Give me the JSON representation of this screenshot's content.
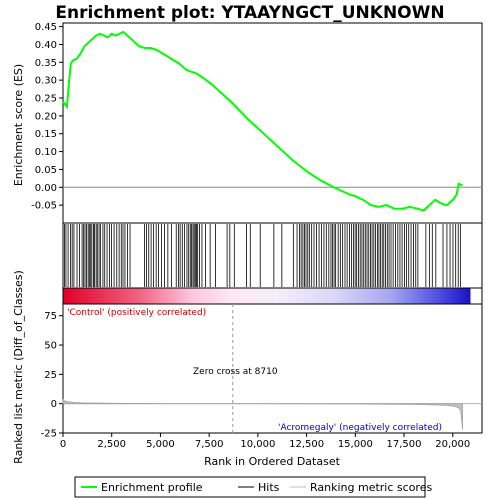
{
  "chart_data": {
    "type": "line",
    "title": "Enrichment plot: YTAAYNGCT_UNKNOWN",
    "top_panel": {
      "ylabel": "Enrichment score (ES)",
      "ylim": [
        -0.1,
        0.46
      ],
      "yticks": [
        -0.05,
        0.0,
        0.05,
        0.1,
        0.15,
        0.2,
        0.25,
        0.3,
        0.35,
        0.4,
        0.45
      ],
      "grid": false,
      "series": [
        {
          "name": "Enrichment profile",
          "color": "#00ff00",
          "x": [
            0,
            200,
            300,
            400,
            500,
            700,
            900,
            1100,
            1300,
            1500,
            1700,
            1900,
            2100,
            2300,
            2500,
            2700,
            2900,
            3100,
            3300,
            3600,
            3900,
            4200,
            4500,
            4800,
            5100,
            5400,
            5700,
            6000,
            6300,
            6500,
            6800,
            7100,
            7600,
            8100,
            8710,
            9500,
            10200,
            11000,
            11800,
            12500,
            13200,
            13900,
            14300,
            14700,
            15000,
            15400,
            15800,
            16200,
            16600,
            17000,
            17400,
            17800,
            18200,
            18500,
            18800,
            19100,
            19400,
            19700,
            20000,
            20200,
            20300,
            20500
          ],
          "y": [
            0.24,
            0.225,
            0.29,
            0.345,
            0.355,
            0.36,
            0.375,
            0.395,
            0.405,
            0.415,
            0.425,
            0.43,
            0.425,
            0.42,
            0.43,
            0.425,
            0.43,
            0.435,
            0.425,
            0.41,
            0.395,
            0.39,
            0.39,
            0.385,
            0.375,
            0.365,
            0.355,
            0.345,
            0.33,
            0.325,
            0.32,
            0.31,
            0.29,
            0.265,
            0.235,
            0.19,
            0.155,
            0.115,
            0.075,
            0.045,
            0.02,
            0.0,
            -0.01,
            -0.02,
            -0.025,
            -0.035,
            -0.05,
            -0.055,
            -0.05,
            -0.06,
            -0.06,
            -0.055,
            -0.06,
            -0.065,
            -0.05,
            -0.035,
            -0.045,
            -0.05,
            -0.035,
            -0.02,
            0.01,
            0.005
          ]
        }
      ]
    },
    "hits": {
      "name": "Hits",
      "x": [
        80,
        150,
        260,
        380,
        470,
        560,
        720,
        850,
        980,
        1060,
        1130,
        1210,
        1290,
        1350,
        1420,
        1480,
        1560,
        1620,
        1700,
        1760,
        1850,
        1930,
        2050,
        2140,
        2260,
        2380,
        2490,
        2620,
        2760,
        2880,
        2990,
        3080,
        3180,
        3310,
        3440,
        4180,
        4290,
        4400,
        4520,
        4640,
        4780,
        4900,
        5060,
        5210,
        5380,
        5560,
        5810,
        5920,
        6010,
        6120,
        6240,
        6360,
        6450,
        6530,
        6600,
        6670,
        6730,
        6790,
        6850,
        6910,
        7010,
        7130,
        7310,
        7550,
        7820,
        8420,
        8560,
        8790,
        9420,
        9610,
        10120,
        10820,
        11230,
        11820,
        12010,
        12130,
        12220,
        12310,
        12390,
        12470,
        12560,
        12640,
        12760,
        12880,
        13010,
        13140,
        13270,
        13390,
        13510,
        13640,
        13750,
        13830,
        13910,
        13990,
        14120,
        14230,
        14350,
        14470,
        14580,
        14700,
        14810,
        14900,
        14990,
        15070,
        15160,
        15250,
        15340,
        15430,
        15510,
        15600,
        15690,
        15780,
        15860,
        15950,
        16040,
        16130,
        16210,
        16290,
        16380,
        16460,
        16550,
        16640,
        16730,
        16830,
        16940,
        17060,
        17180,
        17290,
        17400,
        17520,
        17630,
        17740,
        17860,
        17980,
        18100,
        18210,
        18620,
        18800,
        18950,
        19130,
        19500,
        19700,
        19860,
        20010,
        20150,
        20280,
        20390
      ]
    },
    "ranked_metric": {
      "ylabel": "Ranked list metric (Diff_of_Classes)",
      "xlabel": "Rank in Ordered Dataset",
      "ylim": [
        -25,
        85
      ],
      "yticks": [
        -25,
        0,
        25,
        50,
        75
      ],
      "xlim": [
        0,
        21500
      ],
      "xticks": [
        0,
        2500,
        5000,
        7500,
        10000,
        12500,
        15000,
        17500,
        20000
      ],
      "label_pos": "'Control' (positively correlated)",
      "label_neg": "'Acromegaly' (negatively correlated)",
      "zero_cross_label": "Zero cross at 8710",
      "zero_cross": 8710,
      "x": [
        0,
        100,
        300,
        600,
        1000,
        2000,
        3500,
        5500,
        8710,
        12000,
        15000,
        18000,
        19000,
        19700,
        20100,
        20300,
        20400,
        20450,
        20500
      ],
      "y": [
        3.5,
        2.2,
        1.5,
        1.0,
        0.7,
        0.4,
        0.2,
        0.1,
        0.0,
        -0.1,
        -0.3,
        -0.6,
        -1.0,
        -1.5,
        -2.3,
        -3.5,
        -6.0,
        -12.0,
        -22.0
      ]
    },
    "legend": {
      "items": [
        {
          "label": "Enrichment profile",
          "color": "#00ff00"
        },
        {
          "label": "Hits",
          "color": "#000000"
        },
        {
          "label": "Ranking metric scores",
          "color": "#c0c0c0"
        }
      ]
    }
  }
}
